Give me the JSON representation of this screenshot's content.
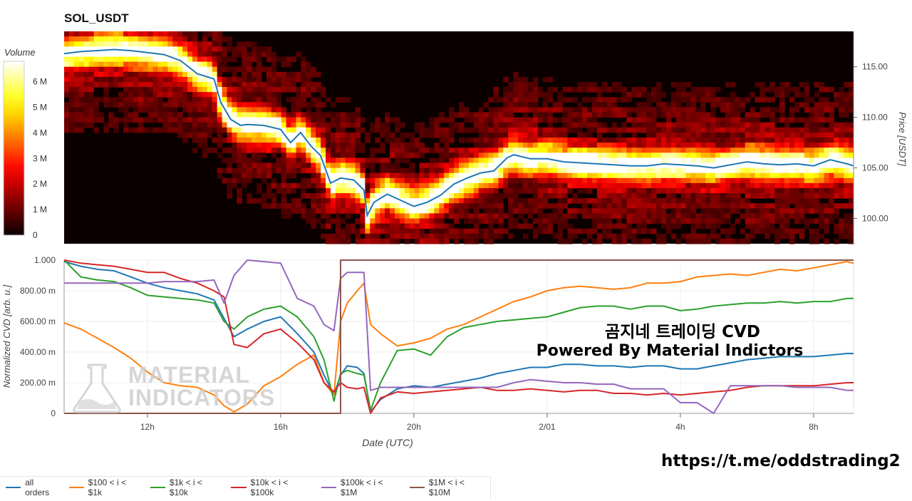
{
  "title": "SOL_USDT",
  "volume_label": "Volume",
  "overlay_line1": "곰지네 트레이딩 CVD",
  "overlay_line2": "Powered By Material Indictors",
  "watermark_line1": "MATERIAL",
  "watermark_line2": "INDICATORS",
  "url": "https://t.me/oddstrading2",
  "colors": {
    "all orders": "#1f77b4",
    "$100 < i < $1k": "#ff7f0e",
    "$1k < i < $10k": "#2ca02c",
    "$10k < i < $100k": "#d62728",
    "$100k < i < $1M": "#9467bd",
    "$1M < i < $10M": "#8c564b"
  },
  "chart_data": [
    {
      "type": "heatmap",
      "title": "SOL_USDT",
      "ylabel": "Price [USDT]",
      "colorbar_label": "Volume",
      "colorbar_ticks": [
        "0",
        "1 M",
        "2 M",
        "3 M",
        "4 M",
        "5 M",
        "6 M"
      ],
      "colorbar_range": [
        0,
        6.8
      ],
      "colormap": "hot",
      "x_range_hours": [
        9.5,
        33.2
      ],
      "ylim": [
        97.5,
        118.5
      ],
      "yticks": [
        "100.00",
        "105.00",
        "110.00",
        "115.00"
      ],
      "price_line_color": "#1f77b4",
      "price_line": {
        "x": [
          9.5,
          10,
          10.5,
          11,
          11.5,
          12,
          12.5,
          13,
          13.5,
          14,
          14.2,
          14.5,
          14.8,
          15,
          15.5,
          16,
          16.3,
          16.6,
          16.9,
          17.2,
          17.5,
          17.8,
          18.2,
          18.5,
          18.6,
          18.8,
          19.2,
          19.6,
          20,
          20.4,
          20.8,
          21.2,
          21.6,
          22,
          22.4,
          22.8,
          23,
          23.5,
          24,
          24.5,
          25,
          25.5,
          26,
          26.5,
          27,
          27.5,
          28,
          28.5,
          29,
          29.5,
          30,
          30.5,
          31,
          31.5,
          32,
          32.5,
          33,
          33.2
        ],
        "y": [
          116.3,
          116.5,
          116.6,
          116.7,
          116.6,
          116.4,
          116.2,
          115.6,
          114.3,
          113.8,
          111.5,
          109.8,
          109.2,
          109.3,
          109.2,
          108.8,
          107.5,
          108.5,
          107.2,
          106.2,
          103.5,
          104.0,
          103.8,
          102.8,
          100.3,
          101.6,
          102.4,
          101.8,
          101.2,
          101.6,
          102.3,
          103.4,
          104.0,
          104.5,
          104.7,
          106.0,
          106.3,
          105.9,
          105.9,
          105.6,
          105.5,
          105.4,
          105.3,
          105.2,
          105.2,
          105.4,
          105.3,
          105.2,
          105.0,
          105.3,
          105.6,
          105.4,
          105.3,
          105.4,
          105.2,
          105.8,
          105.4,
          105.2
        ]
      }
    },
    {
      "type": "line",
      "xlabel": "Date (UTC)",
      "ylabel": "Normalized CVD [arb. u.]",
      "ylim": [
        0,
        1.0
      ],
      "yticks": [
        "0",
        "200.00 m",
        "400.00 m",
        "600.00 m",
        "800.00 m",
        "1.000"
      ],
      "x_range_hours": [
        9.5,
        33.2
      ],
      "xticks": [
        {
          "label": "12h",
          "x": 12
        },
        {
          "label": "16h",
          "x": 16
        },
        {
          "label": "20h",
          "x": 20
        },
        {
          "label": "2/01",
          "x": 24
        },
        {
          "label": "4h",
          "x": 28
        },
        {
          "label": "8h",
          "x": 32
        }
      ],
      "x": [
        9.5,
        10,
        10.5,
        11,
        11.5,
        12,
        12.5,
        13,
        13.5,
        14,
        14.3,
        14.6,
        15,
        15.5,
        16,
        16.5,
        17,
        17.3,
        17.6,
        17.8,
        18,
        18.3,
        18.5,
        18.7,
        19,
        19.5,
        20,
        20.5,
        21,
        21.5,
        22,
        22.5,
        23,
        23.5,
        24,
        24.5,
        25,
        25.5,
        26,
        26.5,
        27,
        27.5,
        28,
        28.5,
        29,
        29.5,
        30,
        30.5,
        31,
        31.5,
        32,
        32.5,
        33,
        33.2
      ],
      "series": [
        {
          "name": "all orders",
          "values": [
            0.99,
            0.96,
            0.94,
            0.93,
            0.89,
            0.85,
            0.82,
            0.8,
            0.78,
            0.74,
            0.62,
            0.5,
            0.55,
            0.6,
            0.63,
            0.52,
            0.4,
            0.25,
            0.12,
            0.25,
            0.31,
            0.3,
            0.26,
            0.01,
            0.09,
            0.16,
            0.18,
            0.17,
            0.19,
            0.21,
            0.23,
            0.26,
            0.28,
            0.3,
            0.3,
            0.32,
            0.32,
            0.31,
            0.31,
            0.3,
            0.31,
            0.31,
            0.29,
            0.29,
            0.31,
            0.33,
            0.35,
            0.36,
            0.37,
            0.37,
            0.37,
            0.38,
            0.39,
            0.39
          ]
        },
        {
          "name": "$100 < i < $1k",
          "values": [
            0.59,
            0.55,
            0.49,
            0.43,
            0.36,
            0.27,
            0.2,
            0.18,
            0.17,
            0.12,
            0.05,
            0.01,
            0.06,
            0.18,
            0.24,
            0.32,
            0.38,
            0.2,
            0.12,
            0.6,
            0.72,
            0.8,
            0.85,
            0.58,
            0.52,
            0.44,
            0.46,
            0.49,
            0.55,
            0.58,
            0.63,
            0.68,
            0.73,
            0.76,
            0.8,
            0.82,
            0.83,
            0.82,
            0.81,
            0.82,
            0.85,
            0.85,
            0.86,
            0.89,
            0.9,
            0.91,
            0.9,
            0.92,
            0.94,
            0.93,
            0.95,
            0.97,
            0.99,
            0.98
          ]
        },
        {
          "name": "$1k < i < $10k",
          "values": [
            1.0,
            0.89,
            0.87,
            0.86,
            0.82,
            0.77,
            0.76,
            0.75,
            0.74,
            0.72,
            0.6,
            0.55,
            0.63,
            0.68,
            0.7,
            0.63,
            0.5,
            0.35,
            0.08,
            0.26,
            0.28,
            0.26,
            0.25,
            0.02,
            0.2,
            0.41,
            0.42,
            0.38,
            0.5,
            0.56,
            0.58,
            0.6,
            0.61,
            0.62,
            0.63,
            0.66,
            0.69,
            0.7,
            0.7,
            0.68,
            0.7,
            0.7,
            0.67,
            0.68,
            0.7,
            0.71,
            0.72,
            0.72,
            0.73,
            0.72,
            0.73,
            0.73,
            0.75,
            0.75
          ]
        },
        {
          "name": "$10k < i < $100k",
          "values": [
            1.0,
            0.98,
            0.97,
            0.96,
            0.94,
            0.92,
            0.92,
            0.88,
            0.85,
            0.8,
            0.76,
            0.45,
            0.43,
            0.52,
            0.55,
            0.46,
            0.35,
            0.2,
            0.14,
            0.2,
            0.17,
            0.16,
            0.17,
            0.0,
            0.1,
            0.14,
            0.13,
            0.14,
            0.15,
            0.16,
            0.17,
            0.15,
            0.15,
            0.16,
            0.15,
            0.14,
            0.15,
            0.15,
            0.13,
            0.13,
            0.12,
            0.13,
            0.12,
            0.13,
            0.14,
            0.15,
            0.17,
            0.18,
            0.18,
            0.18,
            0.18,
            0.19,
            0.2,
            0.2
          ]
        },
        {
          "name": "$100k < i < $1M",
          "values": [
            0.85,
            0.85,
            0.85,
            0.85,
            0.85,
            0.85,
            0.86,
            0.86,
            0.86,
            0.87,
            0.72,
            0.9,
            1.0,
            0.99,
            0.98,
            0.75,
            0.7,
            0.58,
            0.54,
            0.88,
            0.92,
            0.92,
            0.92,
            0.15,
            0.17,
            0.17,
            0.17,
            0.17,
            0.17,
            0.17,
            0.17,
            0.17,
            0.2,
            0.22,
            0.21,
            0.2,
            0.2,
            0.19,
            0.19,
            0.16,
            0.16,
            0.16,
            0.07,
            0.07,
            0.0,
            0.18,
            0.18,
            0.18,
            0.18,
            0.17,
            0.17,
            0.17,
            0.15,
            0.15
          ]
        },
        {
          "name": "$1M < i < $10M",
          "values": [
            0.0,
            0.0,
            0.0,
            0.0,
            0.0,
            0.0,
            0.0,
            0.0,
            0.0,
            0.0,
            0.0,
            0.0,
            0.0,
            0.0,
            0.0,
            0.0,
            0.0,
            0.0,
            0.0,
            1.0,
            1.0,
            1.0,
            1.0,
            1.0,
            1.0,
            1.0,
            1.0,
            1.0,
            1.0,
            1.0,
            1.0,
            1.0,
            1.0,
            1.0,
            1.0,
            1.0,
            1.0,
            1.0,
            1.0,
            1.0,
            1.0,
            1.0,
            1.0,
            1.0,
            1.0,
            1.0,
            1.0,
            1.0,
            1.0,
            1.0,
            1.0,
            1.0,
            1.0,
            1.0
          ]
        }
      ],
      "legend_position": "bottom"
    }
  ]
}
